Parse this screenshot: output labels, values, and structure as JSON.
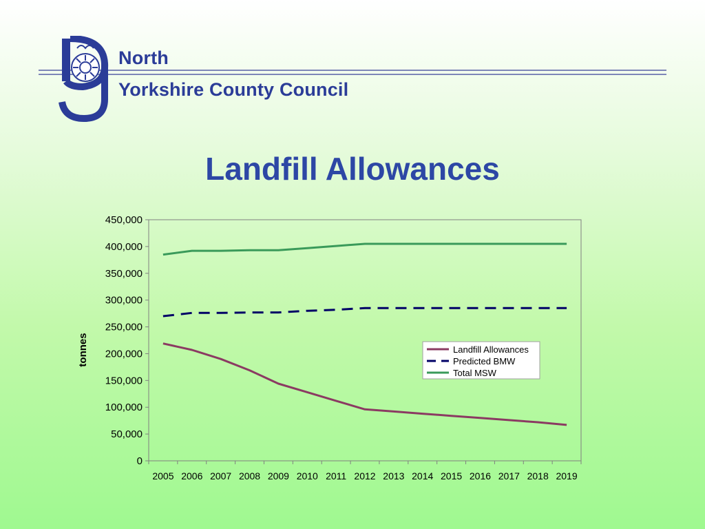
{
  "header": {
    "org_line1": "North",
    "org_line2": "Yorkshire County Council",
    "logo_icon": "council-crest-icon"
  },
  "page": {
    "title": "Landfill Allowances"
  },
  "colors": {
    "rule": "#7e86b8",
    "org_text": "#2b3c98",
    "title": "#2d47a5",
    "landfill": "#8b3a62",
    "bmw": "#000066",
    "msw": "#3a9a5a"
  },
  "chart_data": {
    "type": "line",
    "title": "",
    "xlabel": "",
    "ylabel": "tonnes",
    "ylim": [
      0,
      450000
    ],
    "yticks": [
      "0",
      "50,000",
      "100,000",
      "150,000",
      "200,000",
      "250,000",
      "300,000",
      "350,000",
      "400,000",
      "450,000"
    ],
    "categories": [
      "2005",
      "2006",
      "2007",
      "2008",
      "2009",
      "2010",
      "2011",
      "2012",
      "2013",
      "2014",
      "2015",
      "2016",
      "2017",
      "2018",
      "2019"
    ],
    "legend_position": "right",
    "grid": false,
    "series": [
      {
        "name": "Landfill Allowances",
        "color": "#8b3a62",
        "dash": "solid",
        "values": [
          219000,
          207000,
          190000,
          169000,
          144000,
          128000,
          112000,
          96000,
          92000,
          88000,
          84000,
          80000,
          76000,
          72000,
          67000
        ]
      },
      {
        "name": "Predicted BMW",
        "color": "#000066",
        "dash": "dashed",
        "values": [
          270000,
          276000,
          276000,
          277000,
          277000,
          280000,
          282000,
          285000,
          285000,
          285000,
          285000,
          285000,
          285000,
          285000,
          285000
        ]
      },
      {
        "name": "Total MSW",
        "color": "#3a9a5a",
        "dash": "solid",
        "values": [
          385000,
          392000,
          392000,
          393000,
          393000,
          397000,
          401000,
          405000,
          405000,
          405000,
          405000,
          405000,
          405000,
          405000,
          405000
        ]
      }
    ]
  }
}
